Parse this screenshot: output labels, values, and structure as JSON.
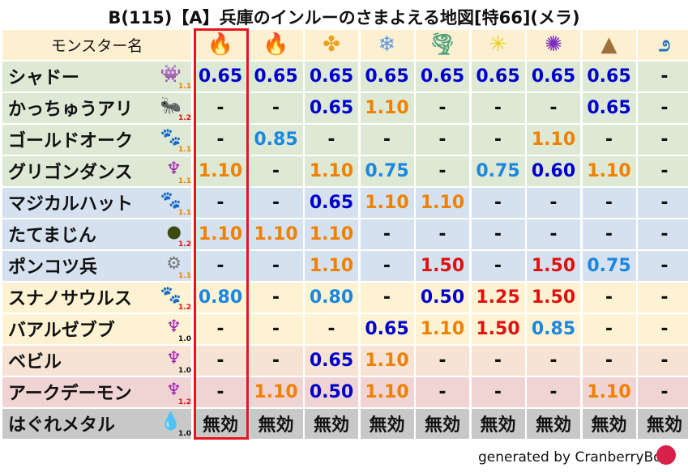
{
  "title": "B(115)【A】兵庫のインルーのさまよえる地図[特66](メラ)",
  "header": {
    "name_label": "モンスター名",
    "elements": [
      {
        "name": "mera",
        "icon": "fire-ball-icon",
        "glyph": "🔥",
        "color": "#d9401a"
      },
      {
        "name": "gira",
        "icon": "flame-icon",
        "glyph": "🔥",
        "color": "#f06020"
      },
      {
        "name": "io",
        "icon": "explosion-icon",
        "glyph": "✤",
        "color": "#f0a020"
      },
      {
        "name": "hyado",
        "icon": "ice-icon",
        "glyph": "❄",
        "color": "#5a9ae6"
      },
      {
        "name": "bagi",
        "icon": "tornado-icon",
        "glyph": "🌪",
        "color": "#4aa07a"
      },
      {
        "name": "dein",
        "icon": "lightning-icon",
        "glyph": "✳",
        "color": "#e8d020"
      },
      {
        "name": "dorma",
        "icon": "dark-swirl-icon",
        "glyph": "✺",
        "color": "#7a30c0"
      },
      {
        "name": "jibaria",
        "icon": "earth-icon",
        "glyph": "▲",
        "color": "#a0703a"
      },
      {
        "name": "water",
        "icon": "wave-icon",
        "glyph": "೨",
        "color": "#2070c0"
      }
    ]
  },
  "value_colors": {
    "0.50": "#0000cc",
    "0.60": "#0000cc",
    "0.65": "#0000cc",
    "0.75": "#1a86e0",
    "0.80": "#1a86e0",
    "0.85": "#1a86e0",
    "1.10": "#f08000",
    "1.25": "#e01010",
    "1.50": "#e01010",
    "-": "#111111",
    "無効": "#111111"
  },
  "rows": [
    {
      "name": "シャドー",
      "icon": "shadow-icon",
      "glyph": "👾",
      "icon_color": "#a050e0",
      "mult": "1.1",
      "mult_color": "#f08000",
      "bg": "#dde8d5",
      "values": [
        "0.65",
        "0.65",
        "0.65",
        "0.65",
        "0.65",
        "0.65",
        "0.65",
        "0.65",
        "-"
      ]
    },
    {
      "name": "かっちゅうアリ",
      "icon": "insect-icon",
      "glyph": "🐜",
      "icon_color": "#234",
      "mult": "1.2",
      "mult_color": "#e01010",
      "bg": "#dde8d5",
      "values": [
        "-",
        "-",
        "0.65",
        "1.10",
        "-",
        "-",
        "-",
        "0.65",
        "-"
      ]
    },
    {
      "name": "ゴールドオーク",
      "icon": "paw-icon",
      "glyph": "🐾",
      "icon_color": "#f09020",
      "mult": "1.1",
      "mult_color": "#f08000",
      "bg": "#dde8d5",
      "values": [
        "-",
        "0.85",
        "-",
        "-",
        "-",
        "-",
        "1.10",
        "-",
        "-"
      ]
    },
    {
      "name": "グリゴンダンス",
      "icon": "demon-icon",
      "glyph": "♆",
      "icon_color": "#a020b0",
      "mult": "1.1",
      "mult_color": "#f08000",
      "bg": "#dde8d5",
      "values": [
        "1.10",
        "-",
        "1.10",
        "0.75",
        "-",
        "0.75",
        "0.60",
        "1.10",
        "-"
      ]
    },
    {
      "name": "マジカルハット",
      "icon": "paw-icon",
      "glyph": "🐾",
      "icon_color": "#f09020",
      "mult": "1.1",
      "mult_color": "#f08000",
      "bg": "#d5e1ef",
      "values": [
        "-",
        "-",
        "0.65",
        "1.10",
        "1.10",
        "-",
        "-",
        "-",
        "-"
      ]
    },
    {
      "name": "たてまじん",
      "icon": "material-icon",
      "glyph": "●",
      "icon_color": "#3a4a10",
      "mult": "1.2",
      "mult_color": "#e01010",
      "bg": "#d5e1ef",
      "values": [
        "1.10",
        "1.10",
        "1.10",
        "-",
        "-",
        "-",
        "-",
        "-",
        "-"
      ]
    },
    {
      "name": "ポンコツ兵",
      "icon": "gear-icon",
      "glyph": "⚙",
      "icon_color": "#777",
      "mult": "1.1",
      "mult_color": "#f08000",
      "bg": "#d5e1ef",
      "values": [
        "-",
        "-",
        "1.10",
        "-",
        "1.50",
        "-",
        "1.50",
        "0.75",
        "-"
      ]
    },
    {
      "name": "スナノサウルス",
      "icon": "paw-icon",
      "glyph": "🐾",
      "icon_color": "#f09020",
      "mult": "1.2",
      "mult_color": "#e01010",
      "bg": "#fdf3d3",
      "values": [
        "0.80",
        "-",
        "0.80",
        "-",
        "0.50",
        "1.25",
        "1.50",
        "-",
        "-"
      ]
    },
    {
      "name": "バアルゼブブ",
      "icon": "demon-icon",
      "glyph": "♆",
      "icon_color": "#a020b0",
      "mult": "1.0",
      "mult_color": "#111",
      "bg": "#fdf3d3",
      "values": [
        "-",
        "-",
        "-",
        "0.65",
        "1.10",
        "1.50",
        "0.85",
        "-",
        "-"
      ]
    },
    {
      "name": "ベビル",
      "icon": "demon-icon",
      "glyph": "♆",
      "icon_color": "#a020b0",
      "mult": "1.0",
      "mult_color": "#111",
      "bg": "#f6e3d3",
      "values": [
        "-",
        "-",
        "0.65",
        "1.10",
        "-",
        "-",
        "-",
        "-",
        "-"
      ]
    },
    {
      "name": "アークデーモン",
      "icon": "demon-icon",
      "glyph": "♆",
      "icon_color": "#a020b0",
      "mult": "1.2",
      "mult_color": "#e01010",
      "bg": "#f0d3d3",
      "values": [
        "-",
        "1.10",
        "0.50",
        "1.10",
        "-",
        "-",
        "-",
        "1.10",
        "-"
      ]
    },
    {
      "name": "はぐれメタル",
      "icon": "slime-icon",
      "glyph": "💧",
      "icon_color": "#2a8ae0",
      "mult": "1.0",
      "mult_color": "#111",
      "bg": "#c8c8c8",
      "values": [
        "無効",
        "無効",
        "無効",
        "無効",
        "無効",
        "無効",
        "無効",
        "無効",
        "無効"
      ]
    }
  ],
  "highlight_color": "#e8141b",
  "footer": {
    "text": "generated by CranberryBot",
    "logo": "cranberry-bot-logo"
  }
}
